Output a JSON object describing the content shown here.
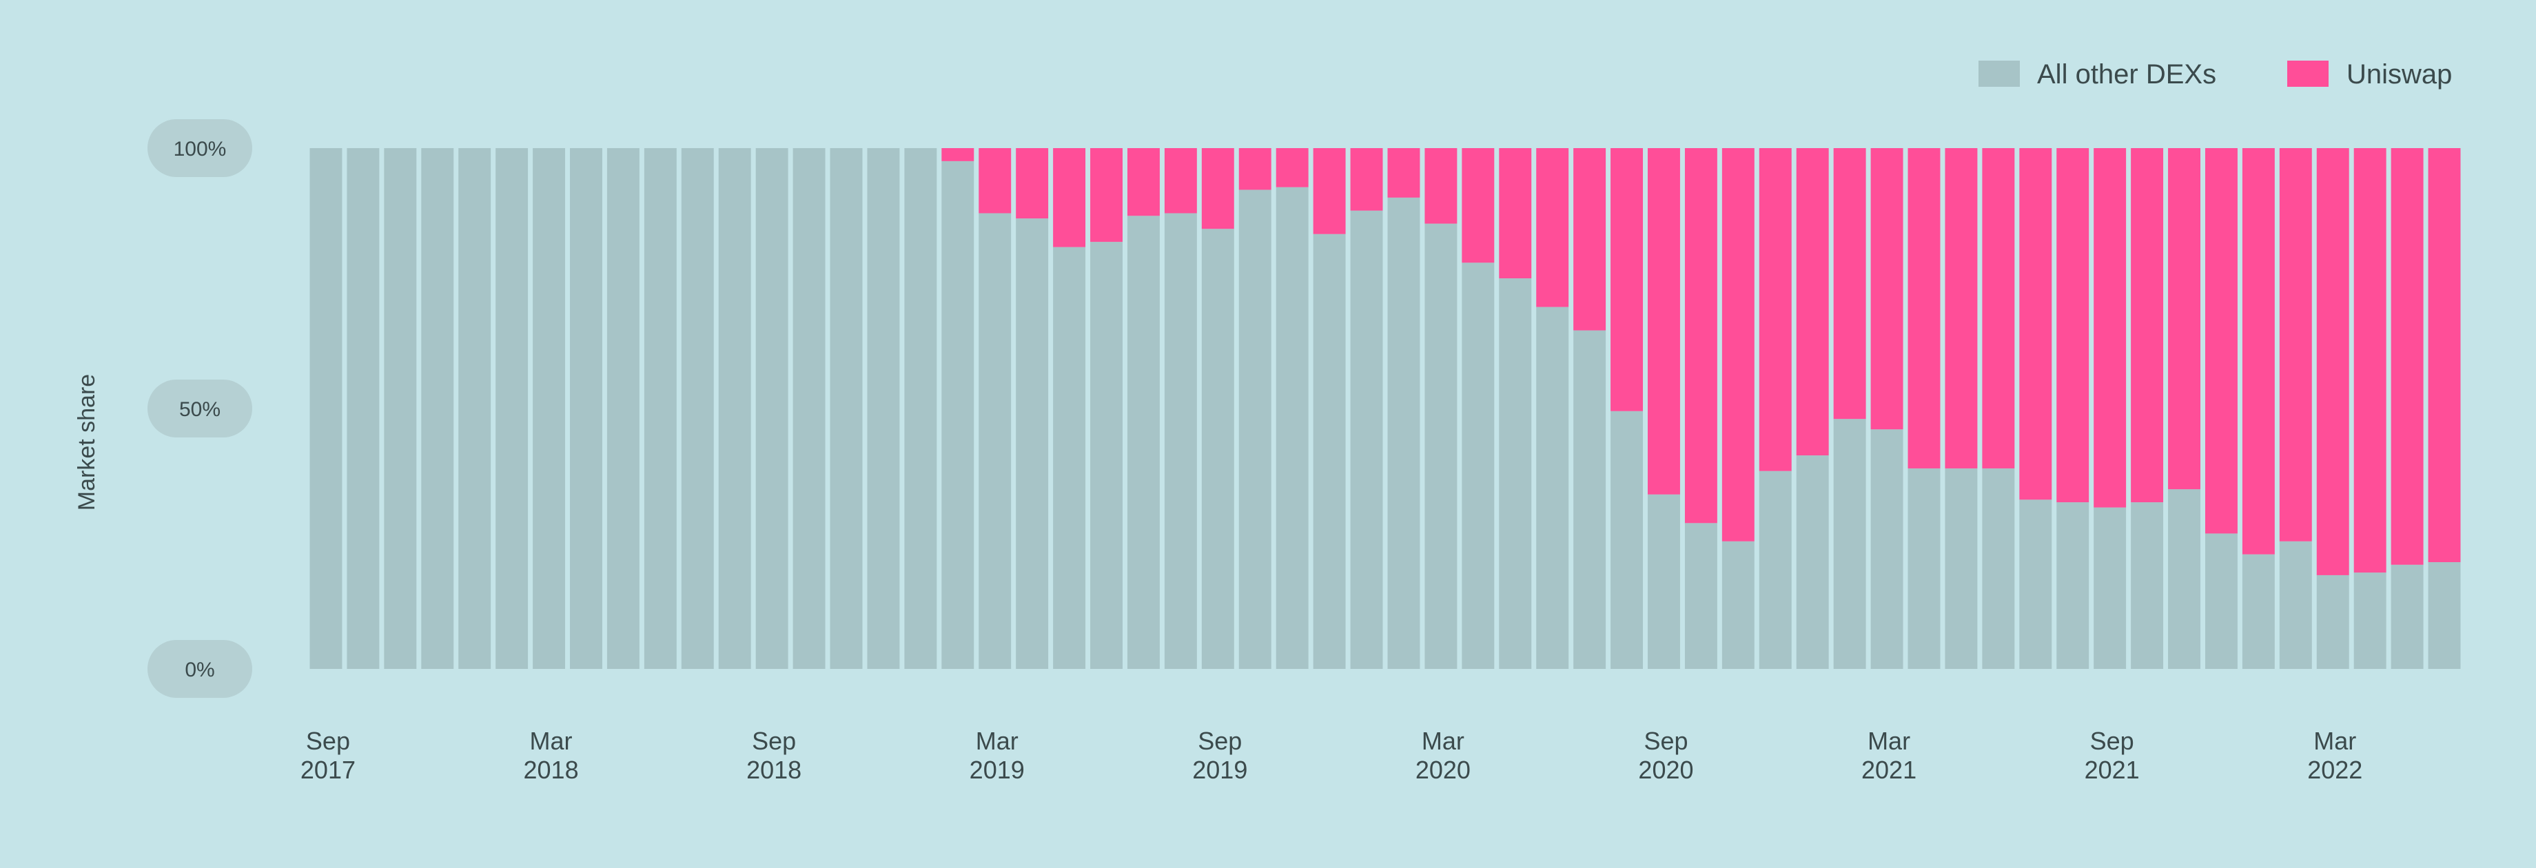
{
  "colors": {
    "background": "#c5e4e8",
    "other_dexs": "#a7c4c7",
    "uniswap": "#ff4e98",
    "text": "#3b4a4c"
  },
  "legend": {
    "other_label": "All other DEXs",
    "uniswap_label": "Uniswap",
    "placement": "top-right"
  },
  "chart_data": {
    "type": "bar",
    "stacked": true,
    "ylabel": "Market share",
    "ylim": [
      0,
      100
    ],
    "yticks": [
      "0%",
      "50%",
      "100%"
    ],
    "xtick_labels": [
      {
        "index": 0,
        "month": "Sep",
        "year": "2017"
      },
      {
        "index": 6,
        "month": "Mar",
        "year": "2018"
      },
      {
        "index": 12,
        "month": "Sep",
        "year": "2018"
      },
      {
        "index": 18,
        "month": "Mar",
        "year": "2019"
      },
      {
        "index": 24,
        "month": "Sep",
        "year": "2019"
      },
      {
        "index": 30,
        "month": "Mar",
        "year": "2020"
      },
      {
        "index": 36,
        "month": "Sep",
        "year": "2020"
      },
      {
        "index": 42,
        "month": "Mar",
        "year": "2021"
      },
      {
        "index": 48,
        "month": "Sep",
        "year": "2021"
      },
      {
        "index": 54,
        "month": "Mar",
        "year": "2022"
      }
    ],
    "series": [
      {
        "name": "All other DEXs",
        "values": [
          100,
          100,
          100,
          100,
          100,
          100,
          100,
          100,
          100,
          100,
          100,
          100,
          100,
          100,
          100,
          100,
          100,
          97.5,
          87.5,
          86.5,
          81,
          82,
          87,
          87.5,
          84.5,
          92,
          92.5,
          83.5,
          88,
          90.5,
          85.5,
          78,
          75,
          69.5,
          65,
          49.5,
          33.5,
          28,
          24.5,
          38,
          41,
          48,
          46,
          38.5,
          38.5,
          38.5,
          32.5,
          32,
          31,
          32,
          34.5,
          26,
          22,
          24.5,
          18,
          18.5,
          20,
          20.5
        ]
      },
      {
        "name": "Uniswap",
        "values": [
          0,
          0,
          0,
          0,
          0,
          0,
          0,
          0,
          0,
          0,
          0,
          0,
          0,
          0,
          0,
          0,
          0,
          2.5,
          12.5,
          13.5,
          19,
          18,
          13,
          12.5,
          15.5,
          8,
          7.5,
          16.5,
          12,
          9.5,
          14.5,
          22,
          25,
          30.5,
          35,
          50.5,
          66.5,
          72,
          75.5,
          62,
          59,
          52,
          54,
          61.5,
          61.5,
          61.5,
          67.5,
          68,
          69,
          68,
          65.5,
          74,
          78,
          75.5,
          82,
          81.5,
          80,
          79.5
        ]
      }
    ]
  }
}
